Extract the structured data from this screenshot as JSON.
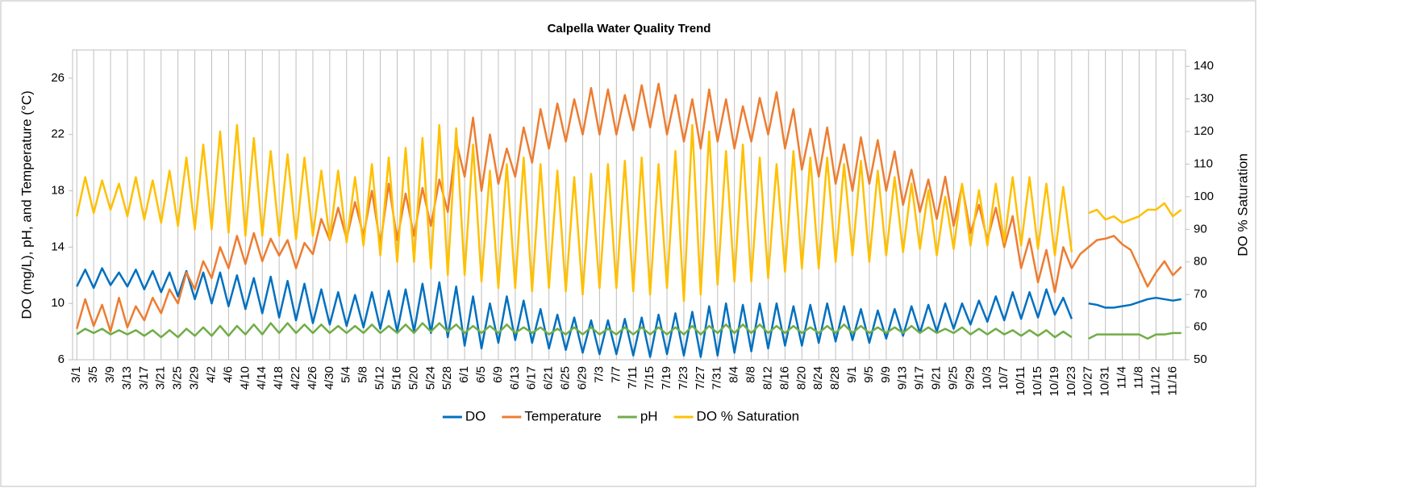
{
  "chart_data": {
    "type": "line",
    "title": "Calpella Water Quality Trend",
    "y_label": "DO (mg/L), pH, and Temperature (°C)",
    "y2_label": "DO % Saturation",
    "categories": [
      "3/1",
      null,
      "3/5",
      null,
      "3/9",
      null,
      "3/13",
      null,
      "3/17",
      null,
      "3/21",
      null,
      "3/25",
      null,
      "3/29",
      null,
      "4/2",
      null,
      "4/6",
      null,
      "4/10",
      null,
      "4/14",
      null,
      "4/18",
      null,
      "4/22",
      null,
      "4/26",
      null,
      "4/30",
      null,
      "5/4",
      null,
      "5/8",
      null,
      "5/12",
      null,
      "5/16",
      null,
      "5/20",
      null,
      "5/24",
      null,
      "5/28",
      null,
      "6/1",
      null,
      "6/5",
      null,
      "6/9",
      null,
      "6/13",
      null,
      "6/17",
      null,
      "6/21",
      null,
      "6/25",
      null,
      "6/29",
      null,
      "7/3",
      null,
      "7/7",
      null,
      "7/11",
      null,
      "7/15",
      null,
      "7/19",
      null,
      "7/23",
      null,
      "7/27",
      null,
      "7/31",
      null,
      "8/4",
      null,
      "8/8",
      null,
      "8/12",
      null,
      "8/16",
      null,
      "8/20",
      null,
      "8/24",
      null,
      "8/28",
      null,
      "9/1",
      null,
      "9/5",
      null,
      "9/9",
      null,
      "9/13",
      null,
      "9/17",
      null,
      "9/21",
      null,
      "9/25",
      null,
      "9/29",
      null,
      "10/3",
      null,
      "10/7",
      null,
      "10/11",
      null,
      "10/15",
      null,
      "10/19",
      null,
      "10/23",
      null,
      "10/27",
      null,
      "10/31",
      null,
      "11/4",
      null,
      "11/8",
      null,
      "11/12",
      null,
      "11/16",
      null
    ],
    "series": [
      {
        "name": "DO",
        "color": "#0070c0",
        "values": [
          11.2,
          12.4,
          11.1,
          12.5,
          11.3,
          12.2,
          11.2,
          12.4,
          11.0,
          12.3,
          10.8,
          12.2,
          10.5,
          12.3,
          10.3,
          12.2,
          10.0,
          12.2,
          9.8,
          12.0,
          9.6,
          11.8,
          9.3,
          11.9,
          9.0,
          11.6,
          8.8,
          11.4,
          8.6,
          11.0,
          8.5,
          10.8,
          8.4,
          10.6,
          8.3,
          10.8,
          8.2,
          10.9,
          8.0,
          11.0,
          8.0,
          11.4,
          7.9,
          11.5,
          7.6,
          11.2,
          7.0,
          10.5,
          6.8,
          10.0,
          7.2,
          10.5,
          7.4,
          10.2,
          7.2,
          9.6,
          6.8,
          9.2,
          6.7,
          9.0,
          6.5,
          8.8,
          6.4,
          8.8,
          6.4,
          8.9,
          6.3,
          9.0,
          6.2,
          9.2,
          6.4,
          9.3,
          6.3,
          9.4,
          6.2,
          9.8,
          6.3,
          10.0,
          6.5,
          9.9,
          6.6,
          10.0,
          6.8,
          10.0,
          7.0,
          9.8,
          7.0,
          9.9,
          7.2,
          10.0,
          7.3,
          9.8,
          7.4,
          9.6,
          7.2,
          9.5,
          7.5,
          9.6,
          7.7,
          9.8,
          7.9,
          9.9,
          8.0,
          10.0,
          8.2,
          10.0,
          8.5,
          10.2,
          8.7,
          10.5,
          8.8,
          10.8,
          8.9,
          10.8,
          9.0,
          11.0,
          9.2,
          10.4,
          8.9,
          null,
          10.0,
          9.9,
          9.7,
          9.7,
          9.8,
          9.9,
          10.1,
          10.3,
          10.4,
          10.3,
          10.2,
          10.3
        ]
      },
      {
        "name": "Temperature",
        "color": "#ed7d31",
        "values": [
          8.2,
          10.3,
          8.4,
          9.9,
          8.0,
          10.4,
          8.3,
          9.8,
          8.8,
          10.4,
          9.3,
          11.0,
          10.0,
          12.2,
          11.0,
          13.0,
          11.8,
          14.0,
          12.5,
          14.8,
          12.8,
          15.0,
          13.0,
          14.6,
          13.4,
          14.5,
          12.5,
          14.3,
          13.5,
          16.0,
          14.5,
          16.8,
          14.6,
          17.2,
          14.8,
          18.0,
          14.2,
          18.5,
          14.5,
          17.8,
          14.8,
          18.2,
          15.5,
          18.8,
          16.5,
          21.5,
          19.0,
          23.2,
          18.0,
          22.0,
          18.5,
          21.0,
          19.0,
          22.5,
          20.0,
          23.8,
          21.0,
          24.2,
          21.5,
          24.5,
          22.0,
          25.3,
          22.0,
          25.2,
          22.0,
          24.8,
          22.3,
          25.5,
          22.5,
          25.6,
          22.0,
          24.8,
          21.5,
          24.5,
          21.0,
          25.2,
          21.5,
          24.5,
          21.0,
          24.0,
          21.5,
          24.6,
          22.0,
          25.0,
          21.0,
          23.8,
          19.5,
          22.4,
          19.0,
          22.5,
          18.5,
          21.3,
          18.0,
          21.8,
          18.5,
          21.6,
          18.0,
          20.8,
          17.0,
          19.5,
          16.5,
          18.8,
          16.0,
          19.0,
          15.5,
          18.4,
          15.0,
          17.0,
          14.5,
          16.8,
          14.0,
          16.2,
          12.5,
          14.6,
          11.5,
          13.8,
          10.8,
          14.0,
          12.5,
          13.5,
          14.0,
          14.5,
          14.6,
          14.8,
          14.2,
          13.8,
          12.5,
          11.2,
          12.2,
          13.0,
          12.0,
          12.6
        ]
      },
      {
        "name": "pH",
        "color": "#70ad47",
        "values": [
          7.8,
          8.2,
          7.9,
          8.2,
          7.8,
          8.1,
          7.8,
          8.1,
          7.7,
          8.1,
          7.6,
          8.1,
          7.6,
          8.2,
          7.7,
          8.3,
          7.7,
          8.4,
          7.7,
          8.4,
          7.8,
          8.5,
          7.8,
          8.6,
          7.9,
          8.6,
          7.9,
          8.5,
          7.9,
          8.5,
          7.9,
          8.4,
          7.9,
          8.4,
          7.9,
          8.5,
          7.9,
          8.4,
          7.9,
          8.5,
          7.9,
          8.6,
          8.0,
          8.6,
          8.0,
          8.5,
          7.9,
          8.4,
          7.9,
          8.4,
          7.9,
          8.5,
          7.9,
          8.3,
          7.9,
          8.3,
          7.8,
          8.2,
          7.8,
          8.3,
          7.8,
          8.3,
          7.8,
          8.2,
          7.8,
          8.3,
          7.8,
          8.3,
          7.8,
          8.3,
          7.8,
          8.3,
          7.8,
          8.4,
          7.8,
          8.4,
          7.9,
          8.5,
          7.9,
          8.5,
          7.9,
          8.5,
          7.9,
          8.4,
          7.9,
          8.4,
          7.9,
          8.3,
          7.9,
          8.4,
          7.9,
          8.5,
          7.9,
          8.4,
          7.9,
          8.3,
          7.9,
          8.3,
          7.9,
          8.4,
          7.9,
          8.3,
          7.9,
          8.2,
          7.9,
          8.3,
          7.8,
          8.2,
          7.8,
          8.2,
          7.8,
          8.1,
          7.7,
          8.1,
          7.7,
          8.1,
          7.6,
          8.0,
          7.6,
          null,
          7.5,
          7.8,
          7.8,
          7.8,
          7.8,
          7.8,
          7.8,
          7.5,
          7.8,
          7.8,
          7.9,
          7.9
        ]
      },
      {
        "name": "DO % Saturation",
        "color": "#ffc000",
        "axis": "y2",
        "values": [
          94,
          106,
          95,
          105,
          96,
          104,
          94,
          106,
          93,
          105,
          92,
          108,
          91,
          112,
          90,
          116,
          90,
          120,
          89,
          122,
          88,
          118,
          88,
          114,
          88,
          113,
          87,
          112,
          88,
          108,
          87,
          108,
          86,
          106,
          85,
          110,
          82,
          112,
          80,
          115,
          80,
          118,
          78,
          122,
          76,
          121,
          76,
          116,
          74,
          108,
          72,
          110,
          72,
          112,
          71,
          110,
          72,
          108,
          71,
          106,
          70,
          107,
          72,
          110,
          72,
          111,
          71,
          112,
          70,
          110,
          72,
          114,
          68,
          122,
          70,
          120,
          73,
          114,
          74,
          116,
          74,
          112,
          75,
          110,
          77,
          114,
          78,
          112,
          78,
          112,
          80,
          110,
          82,
          111,
          80,
          108,
          82,
          106,
          83,
          104,
          84,
          102,
          82,
          100,
          84,
          104,
          85,
          102,
          85,
          104,
          86,
          106,
          85,
          106,
          84,
          104,
          82,
          103,
          83,
          null,
          95,
          96,
          93,
          94,
          92,
          93,
          94,
          96,
          96,
          98,
          94,
          96
        ]
      }
    ],
    "ylim": [
      6,
      28
    ],
    "yticks": [
      6,
      10,
      14,
      18,
      22,
      26
    ],
    "y2lim": [
      50,
      145
    ],
    "y2ticks": [
      50,
      60,
      70,
      80,
      90,
      100,
      110,
      120,
      130,
      140
    ],
    "grid_x": true,
    "legend": "bottom"
  }
}
